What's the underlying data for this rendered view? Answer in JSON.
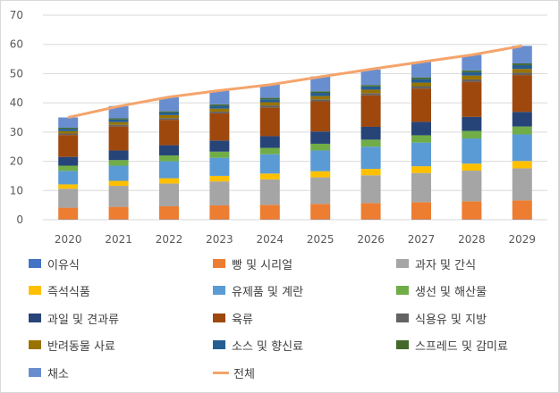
{
  "chart_data": {
    "type": "bar",
    "stacked": true,
    "x": [
      "2020",
      "2021",
      "2022",
      "2023",
      "2024",
      "2025",
      "2026",
      "2027",
      "2028",
      "2029"
    ],
    "ylim": [
      0,
      70
    ],
    "yticks": [
      0,
      10,
      20,
      30,
      40,
      50,
      60,
      70
    ],
    "grid": true,
    "legend_position": "bottom",
    "series": [
      {
        "name": "이유식",
        "color": "#4472c4",
        "values": [
          0.1,
          0.1,
          0.1,
          0.1,
          0.1,
          0.1,
          0.1,
          0.1,
          0.1,
          0.1
        ]
      },
      {
        "name": "빵 및 시리얼",
        "color": "#ed7d31",
        "values": [
          4.0,
          4.3,
          4.5,
          4.8,
          5.0,
          5.3,
          5.6,
          5.9,
          6.2,
          6.5
        ]
      },
      {
        "name": "과자 및 간식",
        "color": "#a5a5a5",
        "values": [
          6.5,
          7.2,
          7.8,
          8.2,
          8.7,
          9.1,
          9.5,
          10.0,
          10.5,
          11.0
        ]
      },
      {
        "name": "즉석식품",
        "color": "#ffc000",
        "values": [
          1.5,
          1.7,
          1.8,
          1.9,
          2.0,
          2.1,
          2.2,
          2.3,
          2.4,
          2.5
        ]
      },
      {
        "name": "유제품 및 계란",
        "color": "#5b9bd5",
        "values": [
          4.6,
          5.2,
          5.8,
          6.2,
          6.6,
          7.1,
          7.6,
          8.1,
          8.6,
          9.1
        ]
      },
      {
        "name": "생선 및 해산물",
        "color": "#70ad47",
        "values": [
          1.8,
          1.9,
          2.0,
          2.1,
          2.2,
          2.3,
          2.4,
          2.5,
          2.6,
          2.7
        ]
      },
      {
        "name": "과일 및 견과류",
        "color": "#264478",
        "values": [
          3.0,
          3.3,
          3.5,
          3.8,
          4.0,
          4.2,
          4.4,
          4.6,
          4.8,
          5.0
        ]
      },
      {
        "name": "육류",
        "color": "#9e480e",
        "values": [
          7.5,
          8.2,
          8.7,
          9.3,
          9.8,
          10.3,
          10.8,
          11.4,
          12.0,
          12.6
        ]
      },
      {
        "name": "식용유 및 지방",
        "color": "#636363",
        "values": [
          0.5,
          0.6,
          0.6,
          0.6,
          0.7,
          0.7,
          0.7,
          0.8,
          0.8,
          0.8
        ]
      },
      {
        "name": "반려동물 사료",
        "color": "#997300",
        "values": [
          0.8,
          0.9,
          1.0,
          1.0,
          1.1,
          1.1,
          1.2,
          1.2,
          1.3,
          1.3
        ]
      },
      {
        "name": "소스 및 향신료",
        "color": "#255e91",
        "values": [
          0.8,
          0.9,
          0.9,
          1.0,
          1.0,
          1.1,
          1.1,
          1.2,
          1.2,
          1.3
        ]
      },
      {
        "name": "스프레드 및 감미료",
        "color": "#43682b",
        "values": [
          0.4,
          0.4,
          0.4,
          0.5,
          0.5,
          0.5,
          0.5,
          0.6,
          0.6,
          0.6
        ]
      },
      {
        "name": "채소",
        "color": "#698ed0",
        "values": [
          3.5,
          4.2,
          4.8,
          4.8,
          4.6,
          5.1,
          5.3,
          5.3,
          5.3,
          6.0
        ]
      }
    ],
    "line_series": {
      "name": "전체",
      "color": "#f4a46c",
      "values": [
        35.0,
        38.8,
        42.0,
        44.2,
        46.2,
        48.9,
        51.5,
        54.0,
        56.4,
        59.5
      ]
    }
  }
}
